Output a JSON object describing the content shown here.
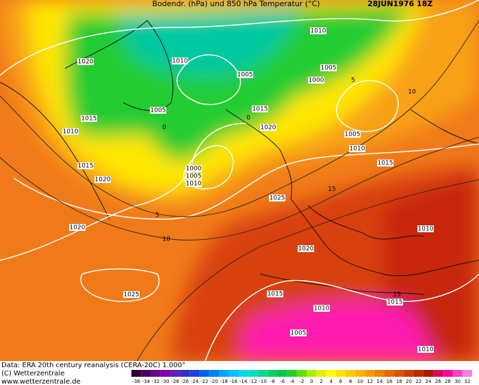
{
  "header": {
    "title": "Bodendr. (hPa) und 850 hPa Temperatur (°C)",
    "valid_time": "28JUN1976 18Z"
  },
  "isobar_labels": [
    "1010",
    "1020",
    "1010",
    "1005",
    "1000",
    "1005",
    "1015",
    "1005",
    "1015",
    "1020",
    "1010",
    "1005",
    "1010",
    "1015",
    "1000",
    "1005",
    "1010",
    "1015",
    "1020",
    "1025",
    "1020",
    "1010",
    "1020",
    "1025",
    "1015",
    "1015",
    "1010",
    "1005",
    "1010"
  ],
  "isotherm_labels": [
    "10",
    "5",
    "0",
    "0",
    "5",
    "10",
    "15",
    "15"
  ],
  "footer": {
    "source": "Data: ERA 20th century reanalysis (CERA-20C) 1.000°",
    "copyright": "(C) Wetterzentrale",
    "url": "www.wetterzentrale.de"
  },
  "colorbar": {
    "labels": [
      -36,
      -34,
      -32,
      -30,
      -28,
      -26,
      -24,
      -22,
      -20,
      -18,
      -16,
      -14,
      -12,
      -10,
      -8,
      -6,
      -4,
      -2,
      0,
      2,
      4,
      6,
      8,
      10,
      12,
      14,
      16,
      18,
      20,
      22,
      24,
      26,
      28,
      30,
      32
    ],
    "colors": [
      "#2a0033",
      "#4b0060",
      "#6a0090",
      "#8000b0",
      "#6020c0",
      "#3030d0",
      "#2040e0",
      "#0060f0",
      "#0080ff",
      "#00a0ff",
      "#00c0ff",
      "#00d8e8",
      "#00e0c0",
      "#00d890",
      "#00d060",
      "#00c840",
      "#20d020",
      "#60e000",
      "#a0f000",
      "#e0f000",
      "#ffff00",
      "#ffe000",
      "#ffc800",
      "#ffb000",
      "#ff9800",
      "#f08000",
      "#e86800",
      "#e05000",
      "#d03c00",
      "#c02800",
      "#b01800",
      "#e00060",
      "#ff00a0",
      "#ff40c0",
      "#ff80e0"
    ]
  }
}
